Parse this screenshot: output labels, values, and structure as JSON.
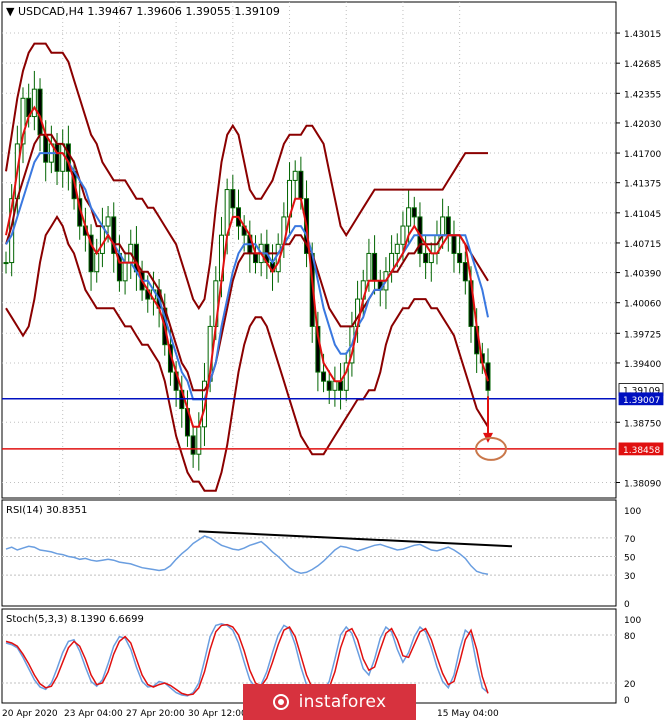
{
  "colors": {
    "candle": "#006400",
    "bollinger": "#8b0000",
    "ma_fast": "#e01010",
    "ma_slow": "#3a78e0",
    "support_line": "#0010c0",
    "target_line": "#e01010",
    "rsi": "#6a9ee0",
    "stoch_main": "#6a9ee0",
    "stoch_signal": "#e01010",
    "trendline": "#000000",
    "target_circle": "#c9774a",
    "arrow": "#e01010",
    "watermark": "#d7323e"
  },
  "chart_data": [
    {
      "type": "candlestick",
      "title": "USDCAD,H4  1.39467 1.39606 1.39055 1.39109",
      "price_ticks": [
        "1.43015",
        "1.42685",
        "1.42355",
        "1.42030",
        "1.41700",
        "1.41375",
        "1.41045",
        "1.40715",
        "1.40390",
        "1.40060",
        "1.39725",
        "1.39400",
        "1.38750",
        "1.38090"
      ],
      "ylim": [
        1.3792,
        1.4318
      ],
      "price_labels": [
        {
          "text": "1.39109",
          "value": 1.39109,
          "highlight": false
        },
        {
          "text": "1.39007",
          "value": 1.39007,
          "highlight": "blue"
        },
        {
          "text": "1.38458",
          "value": 1.38458,
          "highlight": "red"
        }
      ],
      "horizontal_lines": [
        {
          "name": "support",
          "value": 1.39007
        },
        {
          "name": "target",
          "value": 1.38458
        }
      ],
      "x_labels": [
        "20 Apr 2020",
        "23 Apr 04:00",
        "27 Apr 20:00",
        "30 Apr 12:00",
        "15 May 04:00"
      ],
      "close_series": [
        1.405,
        1.412,
        1.418,
        1.423,
        1.421,
        1.424,
        1.419,
        1.416,
        1.418,
        1.415,
        1.418,
        1.415,
        1.412,
        1.409,
        1.408,
        1.404,
        1.406,
        1.409,
        1.41,
        1.406,
        1.403,
        1.405,
        1.407,
        1.404,
        1.402,
        1.401,
        1.402,
        1.4,
        1.396,
        1.393,
        1.391,
        1.389,
        1.386,
        1.384,
        1.387,
        1.392,
        1.398,
        1.403,
        1.408,
        1.413,
        1.411,
        1.409,
        1.408,
        1.406,
        1.405,
        1.407,
        1.405,
        1.404,
        1.407,
        1.41,
        1.414,
        1.415,
        1.412,
        1.406,
        1.398,
        1.393,
        1.392,
        1.391,
        1.392,
        1.391,
        1.394,
        1.398,
        1.401,
        1.403,
        1.406,
        1.403,
        1.402,
        1.404,
        1.406,
        1.407,
        1.409,
        1.411,
        1.41,
        1.406,
        1.405,
        1.406,
        1.408,
        1.41,
        1.408,
        1.406,
        1.405,
        1.403,
        1.398,
        1.395,
        1.394,
        1.391
      ],
      "ma_fast": [
        1.408,
        1.411,
        1.415,
        1.419,
        1.421,
        1.422,
        1.421,
        1.419,
        1.418,
        1.417,
        1.417,
        1.416,
        1.414,
        1.411,
        1.409,
        1.407,
        1.406,
        1.407,
        1.408,
        1.407,
        1.405,
        1.405,
        1.405,
        1.405,
        1.403,
        1.402,
        1.401,
        1.4,
        1.398,
        1.395,
        1.393,
        1.391,
        1.389,
        1.387,
        1.387,
        1.389,
        1.393,
        1.398,
        1.403,
        1.408,
        1.41,
        1.41,
        1.409,
        1.408,
        1.406,
        1.406,
        1.405,
        1.404,
        1.405,
        1.407,
        1.41,
        1.412,
        1.412,
        1.409,
        1.403,
        1.397,
        1.394,
        1.393,
        1.392,
        1.392,
        1.393,
        1.395,
        1.398,
        1.401,
        1.403,
        1.403,
        1.403,
        1.403,
        1.404,
        1.405,
        1.406,
        1.408,
        1.409,
        1.408,
        1.407,
        1.406,
        1.406,
        1.407,
        1.408,
        1.408,
        1.408,
        1.407,
        1.403,
        1.398,
        1.394,
        1.392
      ],
      "ma_slow": [
        1.407,
        1.408,
        1.41,
        1.412,
        1.414,
        1.416,
        1.417,
        1.417,
        1.417,
        1.417,
        1.417,
        1.416,
        1.415,
        1.414,
        1.413,
        1.411,
        1.41,
        1.409,
        1.408,
        1.407,
        1.406,
        1.405,
        1.405,
        1.404,
        1.403,
        1.403,
        1.402,
        1.401,
        1.399,
        1.397,
        1.395,
        1.393,
        1.392,
        1.39,
        1.39,
        1.39,
        1.392,
        1.394,
        1.398,
        1.401,
        1.404,
        1.406,
        1.407,
        1.407,
        1.407,
        1.406,
        1.406,
        1.405,
        1.406,
        1.407,
        1.408,
        1.409,
        1.409,
        1.408,
        1.406,
        1.403,
        1.4,
        1.398,
        1.396,
        1.395,
        1.395,
        1.396,
        1.398,
        1.399,
        1.401,
        1.402,
        1.402,
        1.403,
        1.404,
        1.405,
        1.406,
        1.407,
        1.408,
        1.408,
        1.408,
        1.408,
        1.408,
        1.408,
        1.408,
        1.408,
        1.408,
        1.408,
        1.406,
        1.404,
        1.402,
        1.399
      ],
      "bb_upper": [
        1.415,
        1.419,
        1.423,
        1.426,
        1.428,
        1.429,
        1.429,
        1.429,
        1.428,
        1.428,
        1.428,
        1.427,
        1.425,
        1.423,
        1.421,
        1.419,
        1.418,
        1.416,
        1.415,
        1.414,
        1.414,
        1.414,
        1.413,
        1.412,
        1.412,
        1.411,
        1.411,
        1.41,
        1.409,
        1.408,
        1.407,
        1.405,
        1.403,
        1.401,
        1.4,
        1.401,
        1.405,
        1.411,
        1.416,
        1.419,
        1.42,
        1.419,
        1.416,
        1.413,
        1.412,
        1.412,
        1.413,
        1.414,
        1.416,
        1.418,
        1.419,
        1.419,
        1.419,
        1.42,
        1.42,
        1.419,
        1.418,
        1.415,
        1.412,
        1.409,
        1.408,
        1.409,
        1.41,
        1.411,
        1.412,
        1.413,
        1.413,
        1.413,
        1.413,
        1.413,
        1.413,
        1.413,
        1.413,
        1.413,
        1.413,
        1.413,
        1.413,
        1.413,
        1.414,
        1.415,
        1.416,
        1.417,
        1.417,
        1.417,
        1.417,
        1.417
      ],
      "bb_mid": [
        1.407,
        1.409,
        1.412,
        1.414,
        1.416,
        1.418,
        1.419,
        1.419,
        1.419,
        1.418,
        1.418,
        1.417,
        1.416,
        1.414,
        1.412,
        1.411,
        1.409,
        1.409,
        1.408,
        1.407,
        1.407,
        1.406,
        1.406,
        1.405,
        1.404,
        1.404,
        1.403,
        1.402,
        1.4,
        1.398,
        1.396,
        1.394,
        1.393,
        1.391,
        1.391,
        1.391,
        1.392,
        1.394,
        1.397,
        1.4,
        1.403,
        1.405,
        1.406,
        1.406,
        1.406,
        1.406,
        1.406,
        1.406,
        1.406,
        1.407,
        1.407,
        1.408,
        1.408,
        1.407,
        1.406,
        1.404,
        1.402,
        1.4,
        1.399,
        1.398,
        1.398,
        1.398,
        1.399,
        1.4,
        1.401,
        1.402,
        1.402,
        1.403,
        1.404,
        1.404,
        1.405,
        1.406,
        1.406,
        1.407,
        1.407,
        1.407,
        1.407,
        1.408,
        1.408,
        1.408,
        1.408,
        1.407,
        1.406,
        1.405,
        1.404,
        1.403
      ],
      "bb_lower": [
        1.4,
        1.399,
        1.398,
        1.397,
        1.398,
        1.401,
        1.405,
        1.408,
        1.409,
        1.41,
        1.409,
        1.407,
        1.406,
        1.404,
        1.402,
        1.401,
        1.4,
        1.4,
        1.4,
        1.4,
        1.399,
        1.398,
        1.398,
        1.397,
        1.396,
        1.396,
        1.395,
        1.394,
        1.392,
        1.389,
        1.386,
        1.384,
        1.382,
        1.381,
        1.381,
        1.38,
        1.38,
        1.38,
        1.382,
        1.385,
        1.389,
        1.393,
        1.396,
        1.398,
        1.399,
        1.399,
        1.398,
        1.396,
        1.394,
        1.392,
        1.39,
        1.388,
        1.386,
        1.385,
        1.384,
        1.384,
        1.384,
        1.385,
        1.386,
        1.387,
        1.388,
        1.389,
        1.39,
        1.39,
        1.391,
        1.391,
        1.393,
        1.396,
        1.398,
        1.399,
        1.4,
        1.4,
        1.401,
        1.401,
        1.401,
        1.4,
        1.4,
        1.399,
        1.398,
        1.397,
        1.395,
        1.393,
        1.391,
        1.389,
        1.388,
        1.387
      ]
    },
    {
      "type": "line",
      "title": "RSI(14) 30.8351",
      "ylim": [
        0,
        100
      ],
      "y_ticks": [
        "100",
        "70",
        "50",
        "30",
        "0"
      ],
      "levels": [
        70,
        50,
        30
      ],
      "series": [
        {
          "values": [
            58,
            60,
            57,
            59,
            61,
            60,
            57,
            56,
            55,
            53,
            52,
            50,
            49,
            47,
            48,
            46,
            45,
            46,
            47,
            46,
            44,
            43,
            42,
            40,
            38,
            37,
            36,
            35,
            36,
            40,
            47,
            53,
            58,
            64,
            68,
            72,
            70,
            66,
            62,
            60,
            58,
            57,
            59,
            62,
            64,
            66,
            61,
            55,
            50,
            44,
            38,
            34,
            32,
            33,
            36,
            40,
            45,
            51,
            57,
            61,
            60,
            58,
            56,
            58,
            60,
            62,
            63,
            61,
            59,
            57,
            58,
            60,
            62,
            63,
            60,
            57,
            56,
            58,
            60,
            57,
            53,
            48,
            40,
            34,
            32,
            31
          ]
        }
      ],
      "trendline": {
        "from_index": 34,
        "from_value": 77,
        "to_index": 85,
        "to_value": 61
      }
    },
    {
      "type": "line",
      "title": "Stoch(5,3,3) 8.1390 6.6699",
      "ylim": [
        0,
        100
      ],
      "y_ticks": [
        "100",
        "80",
        "20",
        "0"
      ],
      "levels": [
        80,
        20
      ],
      "series": [
        {
          "name": "main",
          "values": [
            70,
            68,
            64,
            52,
            38,
            24,
            15,
            12,
            20,
            38,
            58,
            72,
            74,
            60,
            40,
            22,
            16,
            24,
            44,
            66,
            78,
            76,
            62,
            40,
            22,
            15,
            16,
            22,
            20,
            14,
            8,
            5,
            4,
            8,
            20,
            48,
            78,
            92,
            94,
            92,
            86,
            70,
            46,
            24,
            14,
            18,
            34,
            58,
            80,
            92,
            88,
            68,
            40,
            18,
            8,
            6,
            10,
            22,
            50,
            80,
            90,
            82,
            60,
            38,
            30,
            50,
            76,
            90,
            84,
            62,
            46,
            58,
            78,
            90,
            84,
            64,
            40,
            22,
            14,
            30,
            62,
            86,
            80,
            44,
            14,
            8
          ]
        },
        {
          "name": "signal",
          "values": [
            72,
            70,
            66,
            56,
            44,
            30,
            19,
            14,
            16,
            28,
            46,
            64,
            72,
            66,
            50,
            30,
            18,
            20,
            34,
            56,
            72,
            78,
            70,
            50,
            30,
            18,
            15,
            18,
            20,
            17,
            12,
            7,
            5,
            6,
            14,
            34,
            62,
            84,
            92,
            93,
            90,
            80,
            60,
            36,
            20,
            16,
            26,
            46,
            68,
            86,
            90,
            78,
            54,
            30,
            14,
            8,
            8,
            14,
            34,
            64,
            84,
            88,
            74,
            50,
            36,
            40,
            62,
            82,
            88,
            74,
            54,
            52,
            68,
            84,
            88,
            74,
            52,
            32,
            18,
            22,
            46,
            74,
            86,
            62,
            28,
            7
          ]
        }
      ]
    }
  ]
}
